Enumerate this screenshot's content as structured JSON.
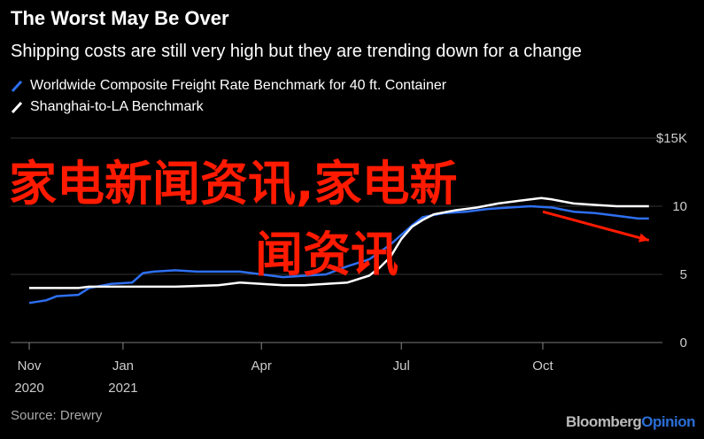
{
  "header": {
    "title": "The Worst May Be Over",
    "subtitle": "Shipping costs are still very high but they are trending down for a change"
  },
  "footer": {
    "source": "Source: Drewry",
    "brand_main": "Bloomberg",
    "brand_accent": "Opinion"
  },
  "watermark": {
    "line1": "家电新闻资讯,家电新",
    "line2": "闻资讯"
  },
  "colors": {
    "background": "#000000",
    "series_blue": "#2e6ff0",
    "series_white": "#ffffff",
    "accent_brand": "#2b6fd6",
    "watermark_red": "#ff1a00"
  },
  "chart_data": {
    "type": "line",
    "title": "The Worst May Be Over",
    "subtitle": "Shipping costs are still very high but they are trending down for a change",
    "x_unit": "date",
    "x_range": [
      "2020-11-01",
      "2021-12-12"
    ],
    "x_ticks": [
      {
        "date": "2020-11-01",
        "label": "Nov",
        "label2": "2020"
      },
      {
        "date": "2021-01-01",
        "label": "Jan",
        "label2": "2021"
      },
      {
        "date": "2021-04-01",
        "label": "Apr",
        "label2": ""
      },
      {
        "date": "2021-07-01",
        "label": "Jul",
        "label2": ""
      },
      {
        "date": "2021-10-01",
        "label": "Oct",
        "label2": ""
      }
    ],
    "ylim": [
      0,
      15
    ],
    "y_ticks": [
      {
        "value": 0,
        "label": "0"
      },
      {
        "value": 5,
        "label": "5"
      },
      {
        "value": 10,
        "label": "10"
      },
      {
        "value": 15,
        "label": "$15K"
      }
    ],
    "grid": true,
    "legend_position": "top-left",
    "series": [
      {
        "name": "Worldwide Composite Freight Rate Benchmark for 40 ft. Container",
        "color": "#2e6ff0",
        "points": [
          [
            "2020-11-01",
            2.9
          ],
          [
            "2020-11-12",
            3.1
          ],
          [
            "2020-11-19",
            3.4
          ],
          [
            "2020-12-03",
            3.5
          ],
          [
            "2020-12-10",
            4.0
          ],
          [
            "2020-12-24",
            4.3
          ],
          [
            "2021-01-07",
            4.4
          ],
          [
            "2021-01-14",
            5.1
          ],
          [
            "2021-01-21",
            5.2
          ],
          [
            "2021-02-04",
            5.3
          ],
          [
            "2021-02-18",
            5.2
          ],
          [
            "2021-03-04",
            5.2
          ],
          [
            "2021-03-18",
            5.2
          ],
          [
            "2021-04-01",
            5.0
          ],
          [
            "2021-04-15",
            4.8
          ],
          [
            "2021-04-29",
            4.9
          ],
          [
            "2021-05-13",
            5.0
          ],
          [
            "2021-05-27",
            5.6
          ],
          [
            "2021-06-10",
            6.1
          ],
          [
            "2021-06-24",
            7.2
          ],
          [
            "2021-07-08",
            8.6
          ],
          [
            "2021-07-15",
            9.2
          ],
          [
            "2021-07-29",
            9.5
          ],
          [
            "2021-08-12",
            9.6
          ],
          [
            "2021-08-26",
            9.8
          ],
          [
            "2021-09-09",
            9.9
          ],
          [
            "2021-09-23",
            10.0
          ],
          [
            "2021-10-07",
            9.9
          ],
          [
            "2021-10-21",
            9.6
          ],
          [
            "2021-11-04",
            9.5
          ],
          [
            "2021-11-18",
            9.3
          ],
          [
            "2021-12-02",
            9.1
          ],
          [
            "2021-12-09",
            9.1
          ]
        ]
      },
      {
        "name": "Shanghai-to-LA Benchmark",
        "color": "#ffffff",
        "points": [
          [
            "2020-11-01",
            4.0
          ],
          [
            "2020-12-03",
            4.0
          ],
          [
            "2020-12-10",
            4.1
          ],
          [
            "2021-01-07",
            4.1
          ],
          [
            "2021-02-04",
            4.1
          ],
          [
            "2021-03-04",
            4.2
          ],
          [
            "2021-03-18",
            4.4
          ],
          [
            "2021-04-01",
            4.3
          ],
          [
            "2021-04-15",
            4.2
          ],
          [
            "2021-04-29",
            4.2
          ],
          [
            "2021-05-13",
            4.3
          ],
          [
            "2021-05-27",
            4.4
          ],
          [
            "2021-06-10",
            4.9
          ],
          [
            "2021-06-17",
            5.5
          ],
          [
            "2021-06-24",
            6.3
          ],
          [
            "2021-07-01",
            7.6
          ],
          [
            "2021-07-08",
            8.5
          ],
          [
            "2021-07-15",
            9.0
          ],
          [
            "2021-07-22",
            9.4
          ],
          [
            "2021-08-05",
            9.7
          ],
          [
            "2021-08-19",
            9.9
          ],
          [
            "2021-09-02",
            10.2
          ],
          [
            "2021-09-16",
            10.4
          ],
          [
            "2021-09-30",
            10.6
          ],
          [
            "2021-10-07",
            10.5
          ],
          [
            "2021-10-21",
            10.2
          ],
          [
            "2021-11-04",
            10.1
          ],
          [
            "2021-11-18",
            10.0
          ],
          [
            "2021-12-09",
            10.0
          ]
        ]
      }
    ],
    "annotations": [
      {
        "type": "arrow",
        "color": "#ff1a00",
        "from": [
          "2021-10-01",
          9.6
        ],
        "to": [
          "2021-12-09",
          7.5
        ]
      }
    ]
  }
}
